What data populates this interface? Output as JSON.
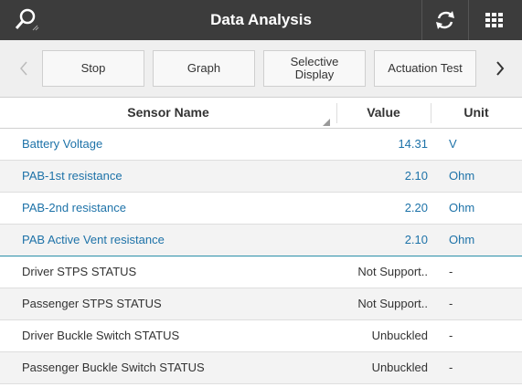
{
  "header": {
    "title": "Data Analysis"
  },
  "toolbar": {
    "buttons": [
      "Stop",
      "Graph",
      "Selective Display",
      "Actuation Test"
    ]
  },
  "table": {
    "columns": [
      "Sensor Name",
      "Value",
      "Unit"
    ],
    "rows": [
      [
        "Battery Voltage",
        "14.31",
        "V"
      ],
      [
        "PAB-1st resistance",
        "2.10",
        "Ohm"
      ],
      [
        "PAB-2nd resistance",
        "2.20",
        "Ohm"
      ],
      [
        "PAB Active Vent resistance",
        "2.10",
        "Ohm"
      ],
      [
        "Driver STPS STATUS",
        "Not Support..",
        "-"
      ],
      [
        "Passenger STPS STATUS",
        "Not Support..",
        "-"
      ],
      [
        "Driver Buckle Switch STATUS",
        "Unbuckled",
        "-"
      ],
      [
        "Passenger Buckle Switch STATUS",
        "Unbuckled",
        "-"
      ]
    ]
  }
}
